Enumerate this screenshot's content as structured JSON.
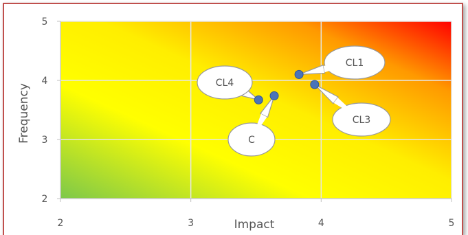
{
  "chart_data": {
    "type": "scatter",
    "title": "",
    "xlabel": "Impact",
    "ylabel": "Frequency",
    "xlim": [
      2,
      5
    ],
    "ylim": [
      2,
      5
    ],
    "x_ticks": [
      "2",
      "3",
      "4",
      "5"
    ],
    "y_ticks": [
      "2",
      "3",
      "4",
      "5"
    ],
    "grid": true,
    "background": "heatmap gradient from green (bottom-left) through yellow to red (top-right)",
    "colors": {
      "low": "#7dc84a",
      "mid": "#ffff00",
      "high": "#ff0000",
      "marker": "#4a74b8",
      "frame": "#c0504d"
    },
    "points": [
      {
        "label": "CL1",
        "x": 3.83,
        "y": 4.1
      },
      {
        "label": "CL3",
        "x": 3.95,
        "y": 3.93
      },
      {
        "label": "CL4",
        "x": 3.52,
        "y": 3.67
      },
      {
        "label": "C",
        "x": 3.64,
        "y": 3.74
      }
    ]
  }
}
